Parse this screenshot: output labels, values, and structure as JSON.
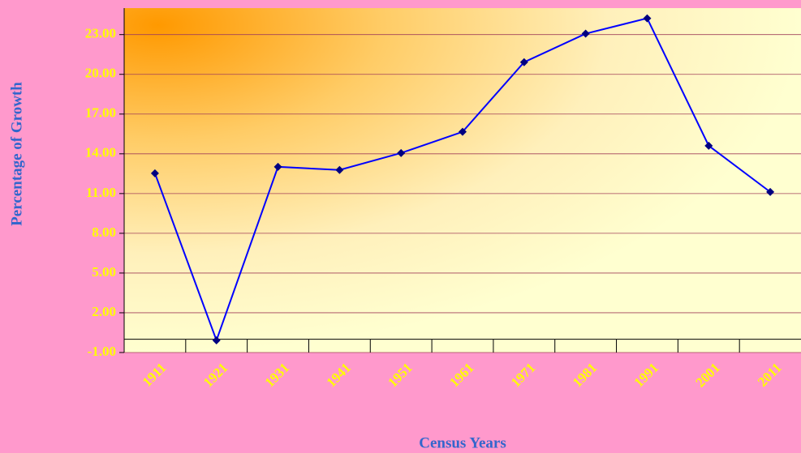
{
  "chart_data": {
    "type": "line",
    "x_label": "Census Years",
    "y_label": "Percentage of Growth",
    "categories": [
      "1911",
      "1921",
      "1931",
      "1941",
      "1951",
      "1961",
      "1971",
      "1981",
      "1991",
      "2001",
      "2011"
    ],
    "series": [
      {
        "name": "Percentage of Growth",
        "color": "#0000ff",
        "marker_color": "#000080",
        "values": [
          12.53,
          -0.08,
          13.02,
          12.78,
          14.06,
          15.66,
          20.92,
          23.07,
          24.23,
          14.61,
          11.12
        ]
      }
    ],
    "ylim": [
      -1,
      25
    ],
    "yticks": [
      {
        "value": -1,
        "label": "-1.00"
      },
      {
        "value": 2,
        "label": "2.00"
      },
      {
        "value": 5,
        "label": "5.00"
      },
      {
        "value": 8,
        "label": "8.00"
      },
      {
        "value": 11,
        "label": "11.00"
      },
      {
        "value": 14,
        "label": "14.00"
      },
      {
        "value": 17,
        "label": "17.00"
      },
      {
        "value": 20,
        "label": "20.00"
      },
      {
        "value": 23,
        "label": "23.00"
      }
    ],
    "grid": true
  }
}
